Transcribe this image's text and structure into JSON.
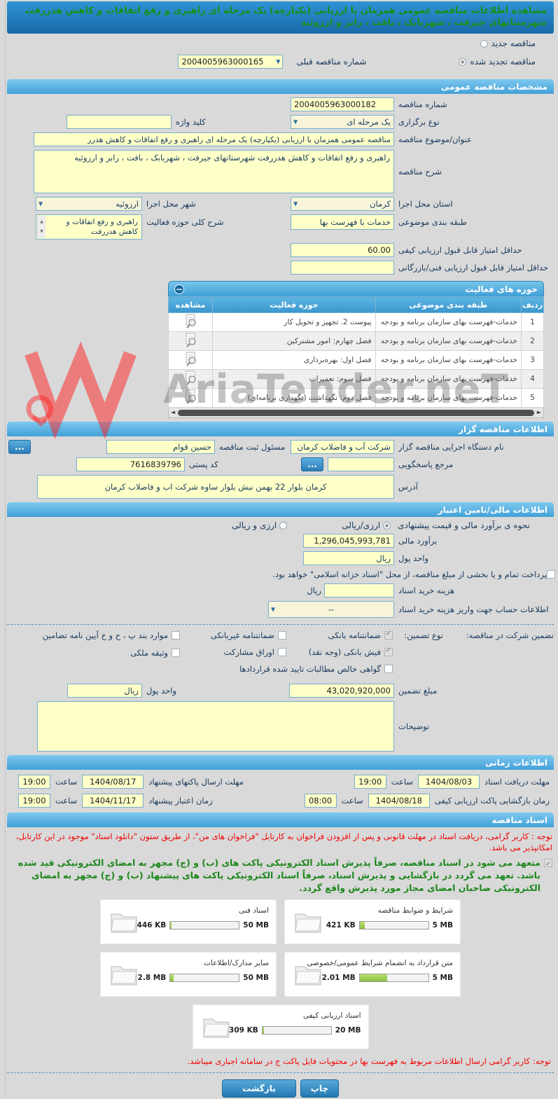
{
  "header": {
    "title": "مشاهده اطلاعات مناقصه عمومی همزمان با ارزیابی (یکپارچه) یک مرحله ای راهبری و رفع اتفاقات و کاهش هدررفت شهرستانهای جیرفت ، شهربابک ، بافت ، رابر و ارزوئیه"
  },
  "tender_type": {
    "new_label": "مناقصه جدید",
    "new_selected": false,
    "renewed_label": "مناقصه تجدید شده",
    "renewed_selected": true,
    "prev_no_label": "شماره مناقصه قبلی",
    "prev_no": "2004005963000165"
  },
  "general": {
    "title": "مشخصات مناقصه عمومی",
    "tender_no_label": "شماره مناقصه",
    "tender_no": "2004005963000182",
    "method_label": "نوع برگزاری",
    "method": "یک مرحله ای",
    "keyword_label": "کلید واژه",
    "keyword": "",
    "subject_label": "عنوان/موضوع مناقصه",
    "subject": "مناقصه عمومی همزمان با ارزیابی (یکپارچه) یک مرحله ای راهبری و رفع اتفاقات و کاهش هدرر",
    "desc_label": "شرح مناقصه",
    "desc": "راهبری و رفع اتفاقات و کاهش هدررفت شهرستانهای جیرفت ، شهربابک ، بافت ، رابر و ارزوئیه",
    "province_label": "استان محل اجرا",
    "province": "کرمان",
    "city_label": "شهر محل اجرا",
    "city": "ارزوئیه",
    "category_label": "طبقه بندی موضوعی",
    "category": "خدمات با فهرست بها",
    "scope_label": "شرح کلی حوزه فعالیت",
    "scope": "راهبری و رفع اتفاقات و کاهش هدررفت",
    "min_quality_label": "حداقل امتیاز قابل قبول ارزیابی کیفی",
    "min_quality": "60.00",
    "min_tech_label": "حداقل امتیاز قابل قبول ارزیابی فنی/بازرگانی",
    "min_tech": ""
  },
  "activity": {
    "title": "حوزه های فعالیت",
    "columns": [
      "ردیف",
      "طبقه بندی موضوعی",
      "حوزه فعالیت",
      "مشاهده"
    ],
    "rows": [
      {
        "no": "1",
        "category": "خدمات-فهرست بهای سازمان برنامه و بودجه",
        "activity": "پیوست 2. تجهیز و تحویل کار"
      },
      {
        "no": "2",
        "category": "خدمات-فهرست بهای سازمان برنامه و بودجه",
        "activity": "فصل چهارم: امور مشترکین"
      },
      {
        "no": "3",
        "category": "خدمات-فهرست بهای سازمان برنامه و بودجه",
        "activity": "فصل اول: بهره‌برداری"
      },
      {
        "no": "4",
        "category": "خدمات-فهرست بهای سازمان برنامه و بودجه",
        "activity": "فصل سوم: تعمیرات"
      },
      {
        "no": "5",
        "category": "خدمات-فهرست بهای سازمان برنامه و بودجه",
        "activity": "فصل دوم: نگهداشت (نگهداری برنامه‌ای)"
      }
    ]
  },
  "agency": {
    "title": "اطلاعات مناقصه گزار",
    "exec_label": "نام دستگاه اجرایی مناقصه گزار",
    "exec": "شرکت آب و فاضلاب کرمان",
    "registrar_label": "مسئول ثبت مناقصه",
    "registrar": "حسین قوام",
    "reference_label": "مرجع پاسخگویی",
    "reference": "",
    "postal_label": "کد پستی",
    "postal": "7616839796",
    "address_label": "آدرس",
    "address": "کرمان بلوار 22 بهمن نبش بلوار ساوه شرکت اب و فاضلاب کرمان",
    "more_label": "..."
  },
  "financial": {
    "title": "اطلاعات مالی/تامین اعتبار",
    "estimate_method_label": "نحوه ی برآورد مالی و قیمت پیشنهادی",
    "option_rial": "ارزی/ریالی",
    "option_rial_selected": true,
    "option_both": "ارزی و ریالی",
    "option_both_selected": false,
    "estimate_label": "برآورد مالی",
    "estimate": "1,296,045,993,781",
    "currency_label": "واحد پول",
    "currency": "ریال",
    "treasury_checked": false,
    "treasury_note": "پرداخت تمام و یا بخشی از مبلغ مناقصه، از محل \"اسناد خزانه اسلامی\" خواهد بود.",
    "doc_fee_label": "هزینه خرید اسناد",
    "doc_fee": "",
    "doc_fee_unit": "ریال",
    "account_label": "اطلاعات حساب جهت واریز هزینه خرید اسناد",
    "account": "--"
  },
  "guarantee": {
    "row_label": "تضمین شرکت در مناقصه:",
    "type_label": "نوع تضمین:",
    "options": [
      {
        "label": "ضمانتنامه بانکی",
        "checked": true
      },
      {
        "label": "فیش بانکی (وجه نقد)",
        "checked": true
      },
      {
        "label": "گواهی خالص مطالبات تایید شده قراردادها",
        "checked": false
      },
      {
        "label": "ضمانتنامه غیربانکی",
        "checked": false
      },
      {
        "label": "اوراق مشارکت",
        "checked": false
      },
      {
        "label": "موارد بند پ ، ح و خ آیین نامه تضامین",
        "checked": false
      },
      {
        "label": "وثیقه ملکی",
        "checked": false
      }
    ],
    "amount_label": "مبلغ تضمین",
    "amount": "43,020,920,000",
    "currency_label": "واحد پول",
    "currency": "ریال",
    "notes_label": "توضیحات",
    "notes": ""
  },
  "timing": {
    "title": "اطلاعات زمانی",
    "hour_label": "ساعت",
    "items": [
      {
        "label": "مهلت دریافت اسناد",
        "date": "1404/08/03",
        "time": "19:00"
      },
      {
        "label": "مهلت ارسال پاکتهای پیشنهاد",
        "date": "1404/08/17",
        "time": "19:00"
      },
      {
        "label": "زمان بازگشایی پاکت ارزیابی کیفی",
        "date": "1404/08/18",
        "time": "08:00"
      },
      {
        "label": "زمان اعتبار پیشنهاد",
        "date": "1404/11/17",
        "time": "19:00"
      }
    ]
  },
  "documents": {
    "title": "اسناد مناقصه",
    "notice": "توجه : کاربر گرامی، دریافت اسناد در مهلت قانونی و پس از افزودن فراخوان به کارتابل \"فراخوان های من\"، از طریق ستون \"دانلود اسناد\" موجود در این کارتابل، امکانپذیر می باشد.",
    "pledge_checked": true,
    "pledge": "متعهد می شود در اسناد مناقصه، صرفاً پذیرش اسناد الکترونیکی پاکت های (ب) و (ج) مجهز به امضای الکترونیکی قید شده باشد. تعهد می گردد در بازگشایی و پذیرش اسناد، صرفاً اسناد الکترونیکی پاکت های پیشنهاد (ب) و (ج) مجهز به امضای الکترونیکی صاحبان امضای مجاز مورد پذیرش واقع گردد.",
    "files": [
      {
        "name": "شرایط و ضوابط مناقصه",
        "size": "421 KB",
        "max": "5 MB",
        "pct": 8
      },
      {
        "name": "اسناد فنی",
        "size": "446 KB",
        "max": "50 MB",
        "pct": 2
      },
      {
        "name": "متن قرارداد به انضمام شرایط عمومی/خصوصی",
        "size": "2.01 MB",
        "max": "5 MB",
        "pct": 40
      },
      {
        "name": "سایر مدارک/اطلاعات",
        "size": "2.8 MB",
        "max": "50 MB",
        "pct": 5
      },
      {
        "name": "اسناد ارزیابی کیفی",
        "size": "309 KB",
        "max": "20 MB",
        "pct": 2
      }
    ],
    "bottom_notice": "توجه: کاربر گرامی ارسال اطلاعات مربوط به فهرست بها در محتویات فایل پاکت ج در سامانه اجباری میباشد."
  },
  "buttons": {
    "print": "چاپ",
    "back": "بازگشت"
  },
  "watermark": {
    "text": "AriaTender.neT"
  },
  "colors": {
    "accent_blue": "#42a0d7",
    "field_yellow": "#ffffc8",
    "alert_red": "#f10000",
    "pledge_green": "#1c871c",
    "progress_green": "#8cbf3f"
  }
}
